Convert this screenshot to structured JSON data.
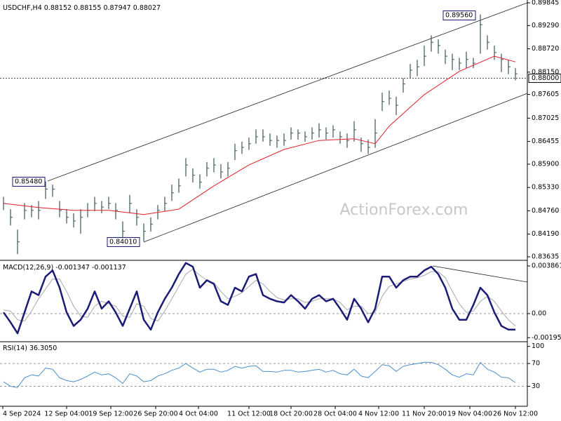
{
  "chart_data": [
    {
      "type": "ohlc",
      "title": "USDCHF,H4",
      "header_ohlc": [
        0.88152,
        0.88155,
        0.87947,
        0.88027
      ],
      "watermark": "ActionForex.com",
      "color": "#3b5656",
      "high": [
        0.851,
        0.848,
        0.843,
        0.8495,
        0.849,
        0.85,
        0.8548,
        0.854,
        0.85,
        0.848,
        0.847,
        0.848,
        0.8495,
        0.851,
        0.85,
        0.851,
        0.8495,
        0.845,
        0.8515,
        0.848,
        0.8445,
        0.846,
        0.849,
        0.851,
        0.854,
        0.8555,
        0.8605,
        0.858,
        0.8565,
        0.8595,
        0.8605,
        0.859,
        0.8595,
        0.864,
        0.8645,
        0.8655,
        0.8675,
        0.8675,
        0.8665,
        0.866,
        0.8665,
        0.868,
        0.8675,
        0.867,
        0.868,
        0.869,
        0.868,
        0.8685,
        0.867,
        0.8665,
        0.8695,
        0.8655,
        0.865,
        0.87,
        0.8765,
        0.877,
        0.8755,
        0.88,
        0.8835,
        0.8845,
        0.888,
        0.8905,
        0.8895,
        0.887,
        0.886,
        0.885,
        0.8865,
        0.885,
        0.8956,
        0.8905,
        0.888,
        0.886,
        0.8845,
        0.8825
      ],
      "low": [
        0.8478,
        0.844,
        0.837,
        0.8455,
        0.846,
        0.8455,
        0.8505,
        0.851,
        0.846,
        0.8445,
        0.8435,
        0.842,
        0.846,
        0.8475,
        0.847,
        0.848,
        0.8455,
        0.841,
        0.847,
        0.844,
        0.8401,
        0.8425,
        0.8455,
        0.8475,
        0.85,
        0.852,
        0.856,
        0.8545,
        0.853,
        0.856,
        0.857,
        0.8555,
        0.856,
        0.86,
        0.8615,
        0.8625,
        0.864,
        0.8645,
        0.8635,
        0.863,
        0.8635,
        0.865,
        0.865,
        0.8645,
        0.865,
        0.8655,
        0.865,
        0.8655,
        0.864,
        0.863,
        0.8645,
        0.862,
        0.8615,
        0.863,
        0.872,
        0.8735,
        0.871,
        0.8765,
        0.88,
        0.8805,
        0.883,
        0.8865,
        0.886,
        0.8835,
        0.882,
        0.882,
        0.8825,
        0.8825,
        0.886,
        0.887,
        0.8845,
        0.8815,
        0.881,
        0.8795
      ],
      "close": [
        0.8494,
        0.846,
        0.84,
        0.8477,
        0.8477,
        0.8477,
        0.8529,
        0.8529,
        0.8477,
        0.846,
        0.8451,
        0.846,
        0.8477,
        0.8494,
        0.8485,
        0.8494,
        0.8477,
        0.8426,
        0.8494,
        0.846,
        0.8426,
        0.8443,
        0.8477,
        0.8494,
        0.852,
        0.8537,
        0.8588,
        0.8563,
        0.8546,
        0.858,
        0.8588,
        0.8571,
        0.858,
        0.8623,
        0.8631,
        0.864,
        0.8657,
        0.8657,
        0.8648,
        0.8648,
        0.8648,
        0.8666,
        0.8666,
        0.8657,
        0.8666,
        0.8674,
        0.8666,
        0.8674,
        0.8657,
        0.8648,
        0.8674,
        0.864,
        0.8631,
        0.8666,
        0.8743,
        0.8751,
        0.8734,
        0.8786,
        0.882,
        0.8828,
        0.8854,
        0.8888,
        0.888,
        0.8854,
        0.8846,
        0.8837,
        0.8846,
        0.8837,
        0.8931,
        0.8888,
        0.8863,
        0.8846,
        0.8828,
        0.8811
      ],
      "ma": {
        "color": "#e0202a",
        "x": [
          0,
          5,
          10,
          15,
          20,
          25,
          30,
          35,
          40,
          45,
          50,
          53,
          55,
          60,
          65,
          70,
          73
        ],
        "values": [
          0.8494,
          0.8484,
          0.8477,
          0.8477,
          0.8467,
          0.848,
          0.8537,
          0.8588,
          0.8626,
          0.8648,
          0.8652,
          0.864,
          0.8683,
          0.876,
          0.8817,
          0.8854,
          0.884
        ]
      },
      "ylim": [
        0.83566,
        0.89914
      ],
      "yticks": [
        0.89845,
        {
          "value": 0.8929,
          "label": "0.89290"
        },
        {
          "value": 0.8872,
          "label": "0.88720"
        },
        {
          "value": 0.8815,
          "label": "0.88150"
        },
        0.87605,
        0.87025,
        0.86455,
        {
          "value": 0.859,
          "label": "0.85900"
        },
        {
          "value": 0.8533,
          "label": "0.85330"
        },
        {
          "value": 0.8476,
          "label": "0.84760"
        },
        {
          "value": 0.8419,
          "label": "0.84190"
        },
        0.83635
      ],
      "current_price": {
        "value": 0.88,
        "label": "0.88000"
      },
      "annotations": [
        {
          "value": 0.8956,
          "label": "0.89560"
        },
        {
          "value": 0.8548,
          "label": "0.85480"
        },
        {
          "value": 0.8401,
          "label": "0.84010"
        }
      ],
      "xticks": [
        {
          "value": -0.1,
          "label": "4 Sep 2024"
        },
        {
          "value": 9,
          "label": "12 Sep 04:00"
        },
        {
          "value": 15.3,
          "label": "19 Sep 12:00"
        },
        {
          "value": 21.7,
          "label": "26 Sep 20:00"
        },
        {
          "value": 27.8,
          "label": "4 Oct 04:00"
        },
        {
          "value": 35,
          "label": "11 Oct 12:00"
        },
        {
          "value": 41,
          "label": "18 Oct 20:00"
        },
        {
          "value": 47.3,
          "label": "28 Oct 04:00"
        },
        {
          "value": 53.5,
          "label": "4 Nov 12:00"
        },
        {
          "value": 60,
          "label": "11 Nov 20:00"
        },
        {
          "value": 66.5,
          "label": "19 Nov 04:00"
        },
        {
          "value": 73,
          "label": "26 Nov 12:00"
        }
      ]
    },
    {
      "type": "line",
      "title": "MACD(12,26,9)",
      "readout": [
        -0.001347,
        -0.001137
      ],
      "series": [
        {
          "color": "#1b1b78",
          "width": 2.5,
          "values": [
            0.0001,
            -0.0007,
            -0.0016,
            0.0001,
            0.0018,
            0.0015,
            0.003,
            0.0035,
            0.0021,
            0.0001,
            -0.001,
            -0.0005,
            0.0004,
            0.0018,
            0.0004,
            0.001,
            0.0001,
            -0.001,
            0.0004,
            0.0018,
            -0.0005,
            -0.0013,
            0.0001,
            0.0012,
            0.0021,
            0.0032,
            0.0041,
            0.0038,
            0.0021,
            0.0027,
            0.0024,
            0.001,
            0.0007,
            0.0021,
            0.0018,
            0.003,
            0.0032,
            0.0015,
            0.0012,
            0.001,
            0.0009,
            0.0015,
            0.001,
            0.0004,
            0.0012,
            0.0015,
            0.001,
            0.0012,
            0.0004,
            -0.0005,
            0.0012,
            0.0004,
            -0.0007,
            0.0004,
            0.003,
            0.003,
            0.0021,
            0.0027,
            0.003,
            0.003,
            0.0035,
            0.0038,
            0.0032,
            0.0021,
            0.0004,
            -0.0005,
            -0.0005,
            0.0007,
            0.0021,
            0.0015,
            0.0001,
            -0.001,
            -0.0013,
            -0.0013
          ]
        },
        {
          "color": "#a8a8a8",
          "width": 1,
          "values": [
            0.0003,
            0.0002,
            -0.0005,
            -0.0006,
            0.0002,
            0.0012,
            0.002,
            0.0028,
            0.0028,
            0.0018,
            0.0006,
            -0.0002,
            -0.0003,
            0.0006,
            0.001,
            0.0008,
            0.0006,
            -0.0002,
            -0.0003,
            0.0008,
            0.0006,
            -0.0004,
            -0.0006,
            0.0002,
            0.0012,
            0.0022,
            0.0032,
            0.0036,
            0.0031,
            0.0027,
            0.0025,
            0.0018,
            0.0012,
            0.0014,
            0.0017,
            0.0022,
            0.0027,
            0.0024,
            0.0018,
            0.0013,
            0.0011,
            0.0012,
            0.0012,
            0.0009,
            0.001,
            0.0012,
            0.0012,
            0.0012,
            0.0009,
            0.0003,
            0.0006,
            0.0006,
            0.0,
            0.0001,
            0.0014,
            0.0022,
            0.0024,
            0.0026,
            0.0028,
            0.0029,
            0.0031,
            0.0034,
            0.0034,
            0.0029,
            0.0018,
            0.0008,
            0.0001,
            0.0002,
            0.001,
            0.0014,
            0.001,
            0.0002,
            -0.0005,
            -0.001
          ]
        }
      ],
      "ylim": [
        -0.00222,
        0.00426
      ],
      "yticks": [
        0.003861,
        {
          "value": 0,
          "label": "0.00"
        },
        -0.00195
      ],
      "levels": [
        0
      ]
    },
    {
      "type": "line",
      "title": "RSI(14)",
      "readout": {
        "value": 36.305,
        "label": "36.3050"
      },
      "series": [
        {
          "color": "#4a8fcc",
          "width": 1,
          "values": [
            38,
            30,
            28,
            45,
            50,
            48,
            62,
            60,
            45,
            40,
            38,
            42,
            48,
            55,
            50,
            52,
            45,
            35,
            52,
            48,
            38,
            40,
            48,
            52,
            58,
            62,
            70,
            62,
            55,
            60,
            60,
            55,
            58,
            65,
            62,
            65,
            66,
            56,
            56,
            55,
            58,
            58,
            55,
            56,
            58,
            60,
            55,
            58,
            52,
            50,
            60,
            48,
            45,
            56,
            68,
            66,
            56,
            65,
            68,
            70,
            72,
            72,
            68,
            60,
            50,
            46,
            52,
            50,
            72,
            60,
            55,
            46,
            45,
            36.3
          ]
        }
      ],
      "ylim": [
        -5,
        107
      ],
      "yticks": [
        100,
        70,
        30
      ],
      "levels": [
        70,
        30
      ]
    }
  ]
}
